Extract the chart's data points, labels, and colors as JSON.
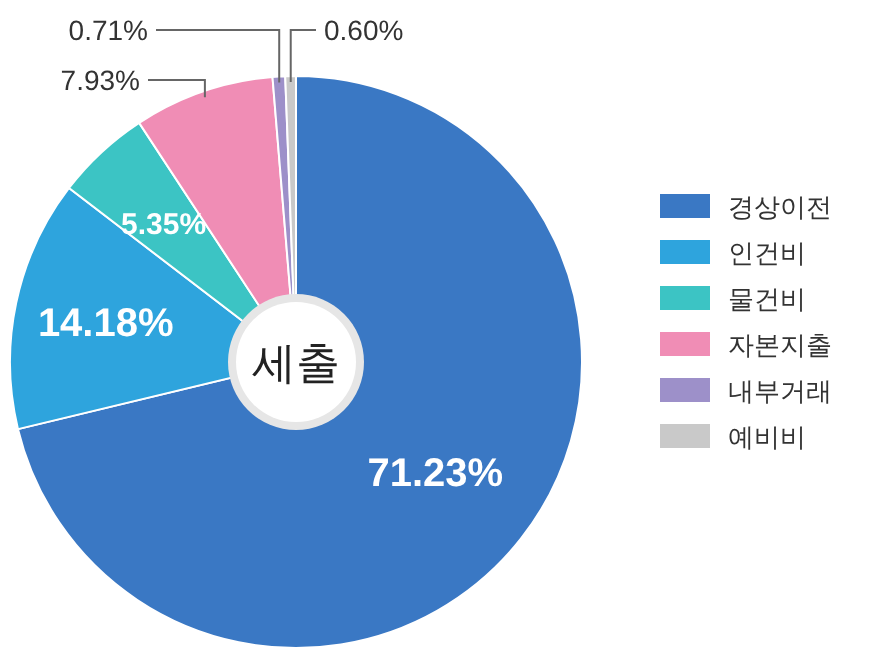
{
  "chart_data": {
    "type": "donut",
    "title": "세출",
    "categories": [
      "경상이전",
      "인건비",
      "물건비",
      "자본지출",
      "내부거래",
      "예비비"
    ],
    "values": [
      71.23,
      14.18,
      5.35,
      7.93,
      0.71,
      0.6
    ],
    "colors": [
      "#3a78c4",
      "#2ea4dd",
      "#3cc4c4",
      "#f08db5",
      "#9d90c9",
      "#c9c9c9"
    ],
    "value_labels": [
      "71.23%",
      "14.18%",
      "5.35%",
      "7.93%",
      "0.71%",
      "0.60%"
    ],
    "legend": "right"
  }
}
